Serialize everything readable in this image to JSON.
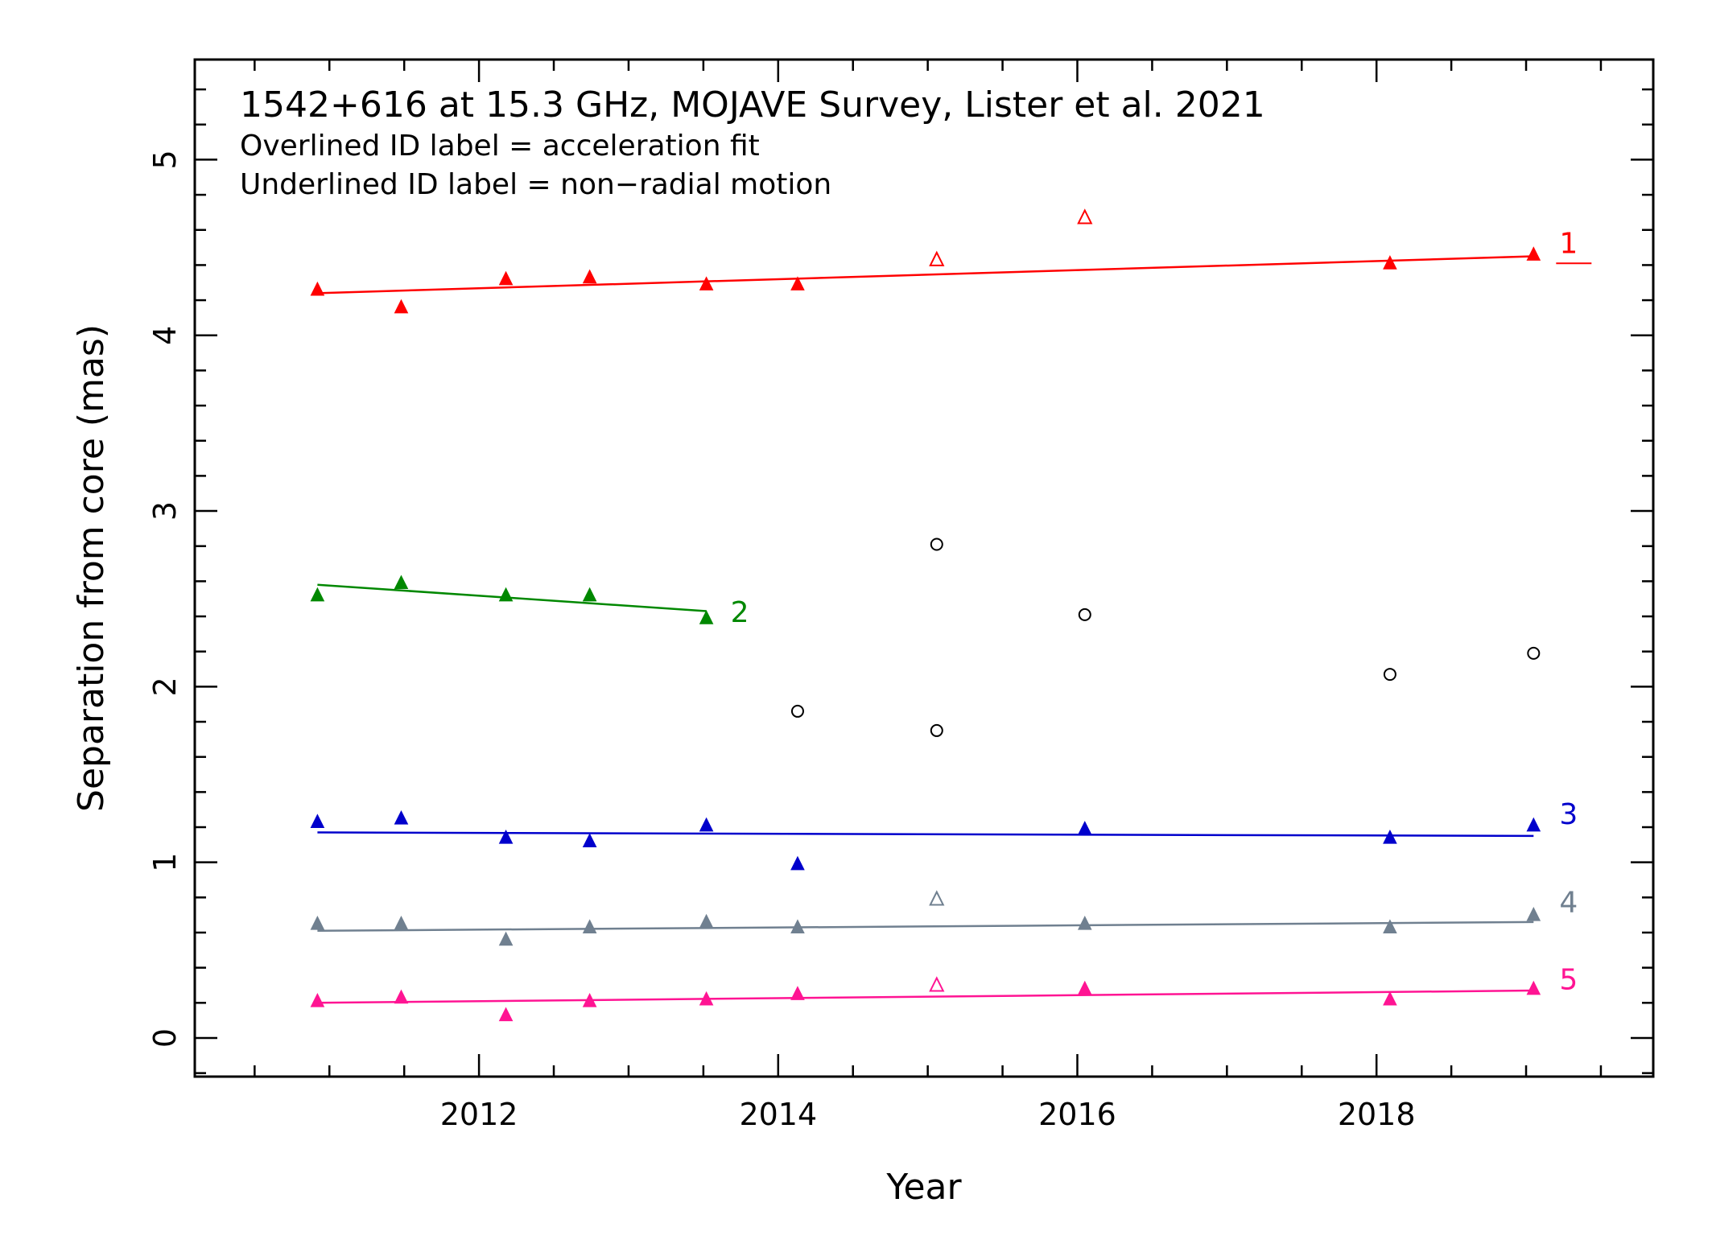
{
  "chart_data": {
    "type": "scatter",
    "title": "1542+616 at 15.3 GHz, MOJAVE Survey, Lister et al. 2021",
    "subtitle_lines": [
      "Overlined ID label = acceleration fit",
      "Underlined ID label = non−radial motion"
    ],
    "xlabel": "Year",
    "ylabel": "Separation from core (mas)",
    "xlim": [
      2010.1,
      2019.85
    ],
    "ylim": [
      -0.22,
      5.57
    ],
    "xticks": [
      2012,
      2014,
      2016,
      2018
    ],
    "xtick_labels": [
      "2012",
      "2014",
      "2016",
      "2018"
    ],
    "yticks": [
      0,
      1,
      2,
      3,
      4,
      5
    ],
    "ytick_labels": [
      "0",
      "1",
      "2",
      "3",
      "4",
      "5"
    ],
    "grid": false,
    "series": [
      {
        "name": "1",
        "color": "#ff0000",
        "label_underlined": true,
        "points": [
          {
            "x": 2010.92,
            "y": 4.26,
            "filled": true
          },
          {
            "x": 2011.48,
            "y": 4.16,
            "filled": true
          },
          {
            "x": 2012.18,
            "y": 4.32,
            "filled": true
          },
          {
            "x": 2012.74,
            "y": 4.33,
            "filled": true
          },
          {
            "x": 2013.52,
            "y": 4.29,
            "filled": true
          },
          {
            "x": 2014.13,
            "y": 4.29,
            "filled": true
          },
          {
            "x": 2015.06,
            "y": 4.43,
            "filled": false
          },
          {
            "x": 2016.05,
            "y": 4.67,
            "filled": false
          },
          {
            "x": 2018.09,
            "y": 4.41,
            "filled": true
          },
          {
            "x": 2019.05,
            "y": 4.46,
            "filled": true
          }
        ],
        "fit": {
          "x": [
            2010.92,
            2019.05
          ],
          "y": [
            4.24,
            4.45
          ]
        }
      },
      {
        "name": "2",
        "color": "#008800",
        "label_underlined": false,
        "points": [
          {
            "x": 2010.92,
            "y": 2.52,
            "filled": true
          },
          {
            "x": 2011.48,
            "y": 2.59,
            "filled": true
          },
          {
            "x": 2012.18,
            "y": 2.52,
            "filled": true
          },
          {
            "x": 2012.74,
            "y": 2.52,
            "filled": true
          },
          {
            "x": 2013.52,
            "y": 2.39,
            "filled": true
          }
        ],
        "fit": {
          "x": [
            2010.92,
            2013.52
          ],
          "y": [
            2.58,
            2.43
          ]
        }
      },
      {
        "name": "3",
        "color": "#0000cc",
        "label_underlined": false,
        "points": [
          {
            "x": 2010.92,
            "y": 1.23,
            "filled": true
          },
          {
            "x": 2011.48,
            "y": 1.25,
            "filled": true
          },
          {
            "x": 2012.18,
            "y": 1.14,
            "filled": true
          },
          {
            "x": 2012.74,
            "y": 1.12,
            "filled": true
          },
          {
            "x": 2013.52,
            "y": 1.21,
            "filled": true
          },
          {
            "x": 2014.13,
            "y": 0.99,
            "filled": true
          },
          {
            "x": 2016.05,
            "y": 1.19,
            "filled": true
          },
          {
            "x": 2018.09,
            "y": 1.14,
            "filled": true
          },
          {
            "x": 2019.05,
            "y": 1.21,
            "filled": true
          }
        ],
        "fit": {
          "x": [
            2010.92,
            2019.05
          ],
          "y": [
            1.17,
            1.15
          ]
        }
      },
      {
        "name": "4",
        "color": "#708090",
        "label_underlined": false,
        "points": [
          {
            "x": 2010.92,
            "y": 0.65,
            "filled": true
          },
          {
            "x": 2011.48,
            "y": 0.65,
            "filled": true
          },
          {
            "x": 2012.18,
            "y": 0.56,
            "filled": true
          },
          {
            "x": 2012.74,
            "y": 0.63,
            "filled": true
          },
          {
            "x": 2013.52,
            "y": 0.66,
            "filled": true
          },
          {
            "x": 2014.13,
            "y": 0.63,
            "filled": true
          },
          {
            "x": 2015.06,
            "y": 0.79,
            "filled": false
          },
          {
            "x": 2016.05,
            "y": 0.65,
            "filled": true
          },
          {
            "x": 2018.09,
            "y": 0.63,
            "filled": true
          },
          {
            "x": 2019.05,
            "y": 0.7,
            "filled": true
          }
        ],
        "fit": {
          "x": [
            2010.92,
            2019.05
          ],
          "y": [
            0.61,
            0.66
          ]
        }
      },
      {
        "name": "5",
        "color": "#ff1493",
        "label_underlined": false,
        "points": [
          {
            "x": 2010.92,
            "y": 0.21,
            "filled": true
          },
          {
            "x": 2011.48,
            "y": 0.23,
            "filled": true
          },
          {
            "x": 2012.18,
            "y": 0.13,
            "filled": true
          },
          {
            "x": 2012.74,
            "y": 0.21,
            "filled": true
          },
          {
            "x": 2013.52,
            "y": 0.22,
            "filled": true
          },
          {
            "x": 2014.13,
            "y": 0.25,
            "filled": true
          },
          {
            "x": 2015.06,
            "y": 0.3,
            "filled": false
          },
          {
            "x": 2016.05,
            "y": 0.28,
            "filled": true
          },
          {
            "x": 2018.09,
            "y": 0.22,
            "filled": true
          },
          {
            "x": 2019.05,
            "y": 0.28,
            "filled": true
          }
        ],
        "fit": {
          "x": [
            2010.92,
            2019.05
          ],
          "y": [
            0.2,
            0.27
          ]
        }
      }
    ],
    "unassociated": {
      "color": "#000000",
      "marker": "open-circle",
      "points": [
        {
          "x": 2014.13,
          "y": 1.86
        },
        {
          "x": 2015.06,
          "y": 2.81
        },
        {
          "x": 2015.06,
          "y": 1.75
        },
        {
          "x": 2016.05,
          "y": 2.41
        },
        {
          "x": 2018.09,
          "y": 2.07
        },
        {
          "x": 2019.05,
          "y": 2.19
        }
      ]
    }
  }
}
